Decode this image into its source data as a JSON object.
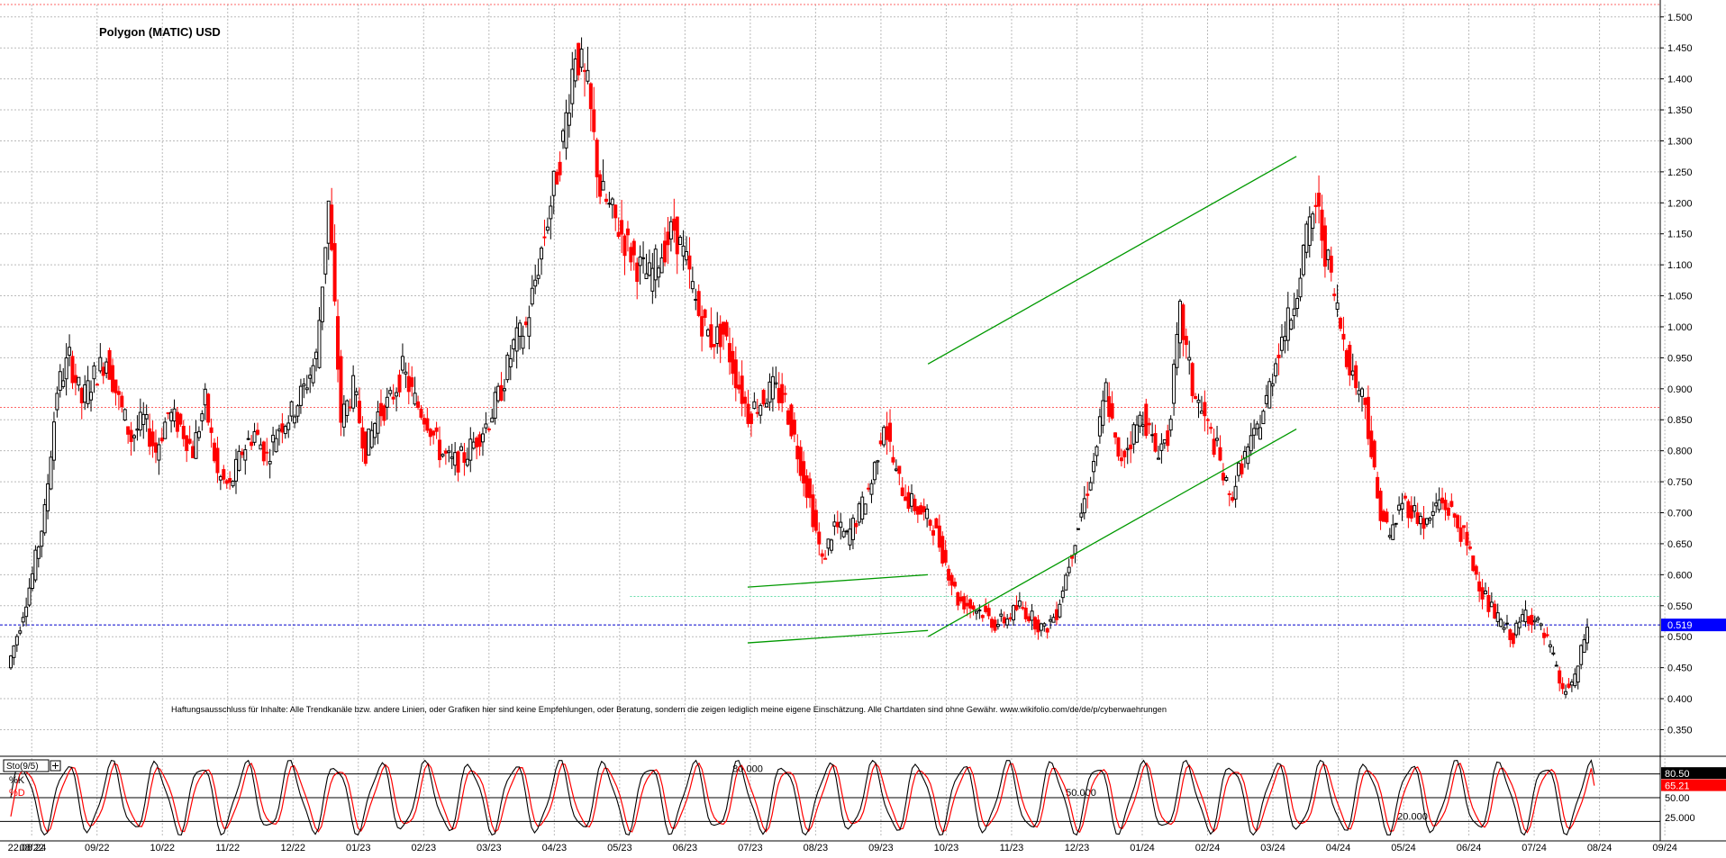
{
  "title": "Polygon (MATIC) USD",
  "disclaimer": "Haftungsausschluss für Inhalte: Alle Trendkanäle bzw. andere Linien, oder Grafiken hier sind keine Empfehlungen, oder Beratung, sondern die zeigen lediglich meine eigene Einschätzung. Alle Chartdaten sind ohne Gewähr.  www.wikifolio.com/de/de/p/cyberwaehrungen",
  "colors": {
    "up": "#000000",
    "down": "#ff0000",
    "trendline": "#009900",
    "last_price_line": "#0000cc",
    "last_price_tag": "#0000ff",
    "support_line": "#66ddaa",
    "resistance_line": "#ff6666",
    "grid": "#bbbbbb",
    "k_line": "#000000",
    "d_line": "#ff0000"
  },
  "chart_data": [
    {
      "type": "candlestick",
      "title": "Polygon (MATIC) USD",
      "ylim": [
        0.31,
        1.52
      ],
      "y_ticks": [
        "1.500",
        "1.450",
        "1.400",
        "1.350",
        "1.300",
        "1.250",
        "1.200",
        "1.150",
        "1.100",
        "1.050",
        "1.000",
        "0.950",
        "0.900",
        "0.850",
        "0.800",
        "0.750",
        "0.700",
        "0.650",
        "0.600",
        "0.550",
        "0.500",
        "0.450",
        "0.400",
        "0.350"
      ],
      "x_ticks": [
        "22.08.24",
        "08/22",
        "09/22",
        "10/22",
        "11/22",
        "12/22",
        "01/23",
        "02/23",
        "03/23",
        "04/23",
        "05/23",
        "06/23",
        "07/23",
        "08/23",
        "09/23",
        "10/23",
        "11/23",
        "12/23",
        "01/24",
        "02/24",
        "03/24",
        "04/24",
        "05/24",
        "06/24",
        "07/24",
        "08/24",
        "09/24"
      ],
      "weekly_closes": [
        0.45,
        0.52,
        0.6,
        0.7,
        0.9,
        0.95,
        0.88,
        0.92,
        0.95,
        0.88,
        0.82,
        0.85,
        0.8,
        0.86,
        0.84,
        0.8,
        0.88,
        0.76,
        0.74,
        0.8,
        0.83,
        0.79,
        0.84,
        0.86,
        0.9,
        0.95,
        1.2,
        0.85,
        0.9,
        0.8,
        0.86,
        0.88,
        0.93,
        0.88,
        0.85,
        0.8,
        0.78,
        0.79,
        0.82,
        0.85,
        0.9,
        0.97,
        1.0,
        1.1,
        1.2,
        1.3,
        1.45,
        1.38,
        1.22,
        1.18,
        1.14,
        1.1,
        1.08,
        1.12,
        1.16,
        1.1,
        1.02,
        0.98,
        0.99,
        0.92,
        0.86,
        0.88,
        0.9,
        0.88,
        0.8,
        0.72,
        0.62,
        0.68,
        0.66,
        0.7,
        0.75,
        0.85,
        0.76,
        0.72,
        0.7,
        0.68,
        0.62,
        0.56,
        0.55,
        0.54,
        0.52,
        0.53,
        0.55,
        0.53,
        0.51,
        0.54,
        0.62,
        0.7,
        0.78,
        0.9,
        0.78,
        0.82,
        0.86,
        0.8,
        0.82,
        1.02,
        0.9,
        0.85,
        0.8,
        0.72,
        0.78,
        0.82,
        0.88,
        0.97,
        1.02,
        1.12,
        1.2,
        1.1,
        1.0,
        0.92,
        0.88,
        0.72,
        0.66,
        0.72,
        0.7,
        0.68,
        0.72,
        0.7,
        0.66,
        0.6,
        0.55,
        0.52,
        0.5,
        0.54,
        0.52,
        0.48,
        0.41,
        0.43,
        0.519
      ],
      "last_price": 0.519,
      "last_price_label": "0.519",
      "horizontal_levels": [
        {
          "name": "support",
          "value": 0.565
        },
        {
          "name": "resistance",
          "value": 0.87
        },
        {
          "name": "top",
          "value": 1.52
        }
      ],
      "trendlines": [
        {
          "name": "channel-upper",
          "from": [
            2023.81,
            0.94
          ],
          "to": [
            2024.28,
            1.275
          ]
        },
        {
          "name": "channel-lower",
          "from": [
            2023.81,
            0.5
          ],
          "to": [
            2024.28,
            0.835
          ]
        },
        {
          "name": "triangle-upper",
          "from": [
            2023.58,
            0.58
          ],
          "to": [
            2023.81,
            0.6
          ]
        },
        {
          "name": "triangle-lower",
          "from": [
            2023.58,
            0.49
          ],
          "to": [
            2023.81,
            0.51
          ]
        }
      ]
    },
    {
      "type": "line",
      "name": "Sto(9/5)",
      "series_labels": [
        "%K",
        "%D"
      ],
      "levels": [
        {
          "label": "80.000",
          "value": 80
        },
        {
          "label": "50.000",
          "value": 50
        },
        {
          "label": "20.000",
          "value": 20
        }
      ],
      "axis_labels": [
        "80.50",
        "65.21",
        "50.00",
        "25.000"
      ],
      "current_k": 80.5,
      "current_d": 65.21,
      "ylim": [
        0,
        100
      ]
    }
  ]
}
